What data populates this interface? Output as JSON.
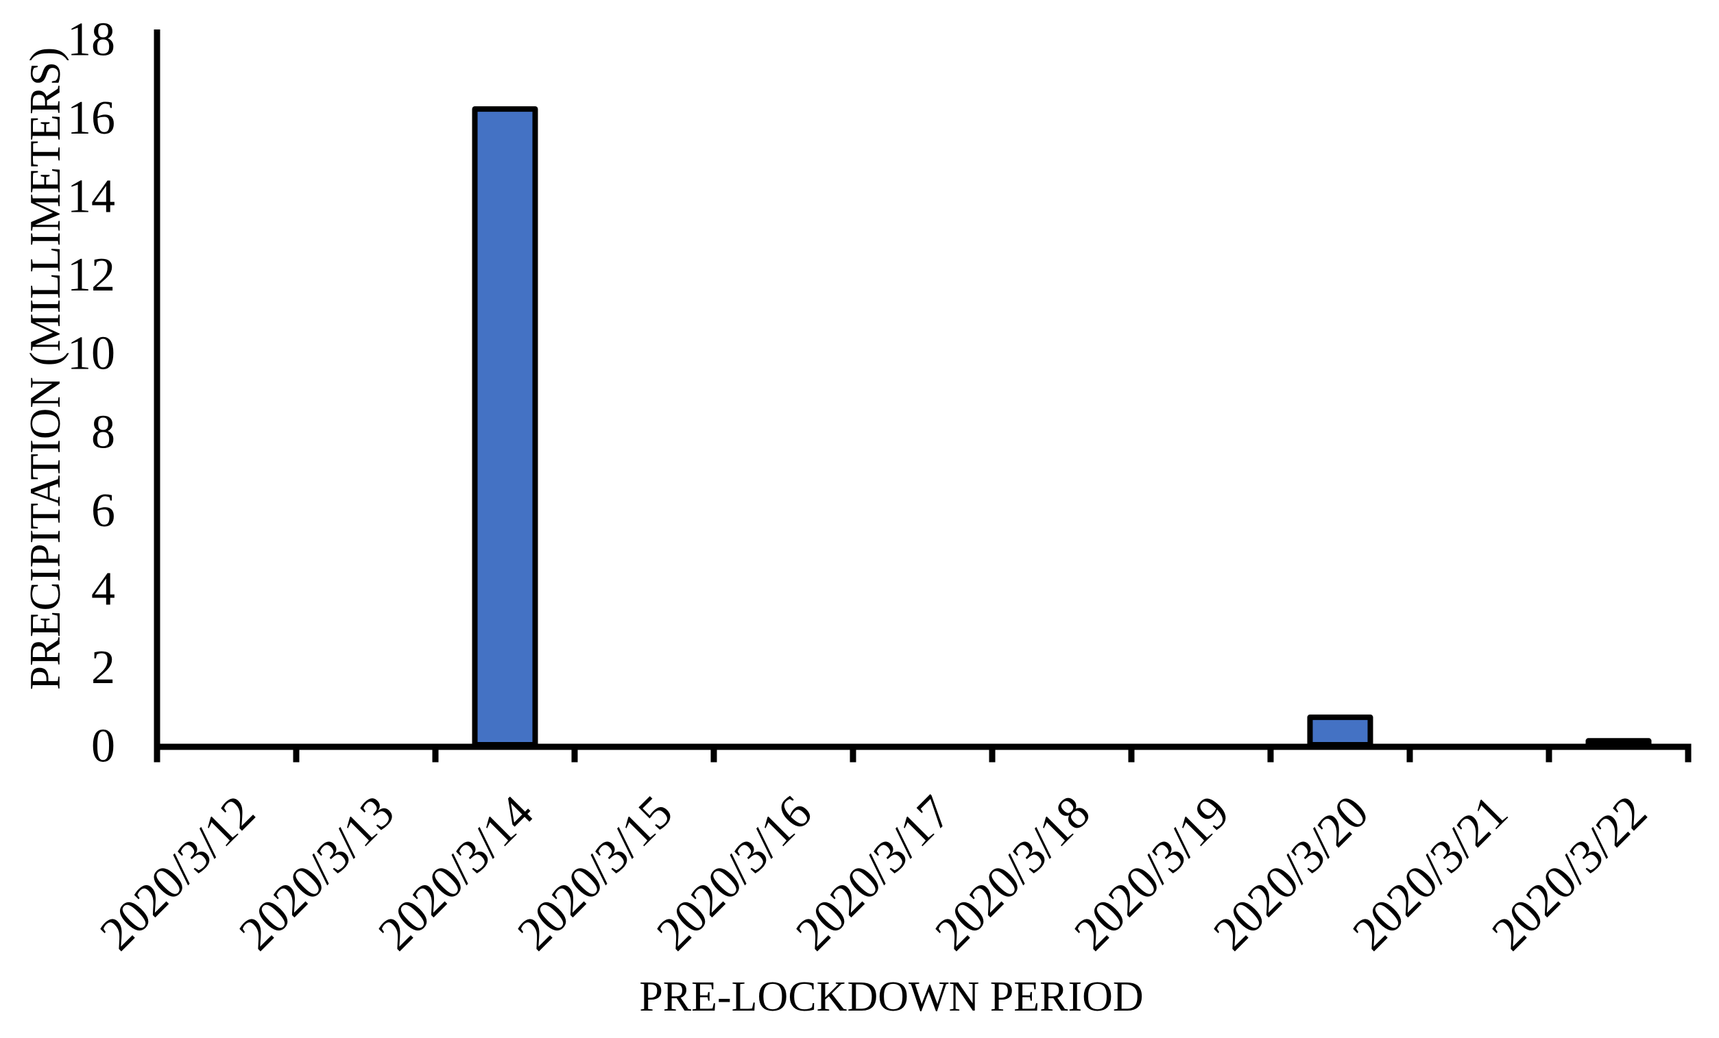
{
  "chart_data": {
    "type": "bar",
    "categories": [
      "2020/3/12",
      "2020/3/13",
      "2020/3/14",
      "2020/3/15",
      "2020/3/16",
      "2020/3/17",
      "2020/3/18",
      "2020/3/19",
      "2020/3/20",
      "2020/3/21",
      "2020/3/22"
    ],
    "values": [
      0,
      0,
      16.2,
      0,
      0,
      0,
      0,
      0,
      0.7,
      0,
      0.1
    ],
    "title": "",
    "xlabel": "PRE-LOCKDOWN PERIOD",
    "ylabel": "PRECIPITATION (MILLIMETERS)",
    "ylim": [
      0,
      18
    ],
    "yticks": [
      0,
      2,
      4,
      6,
      8,
      10,
      12,
      14,
      16,
      18
    ],
    "ytick_step": 2,
    "x_tick_rotation_deg": 45,
    "grid": false,
    "legend": "none",
    "bar_color": "#4472C4",
    "bar_border_color": "#000000",
    "axis_color": "#000000",
    "text_color": "#000000",
    "background_color": "#FFFFFF"
  }
}
